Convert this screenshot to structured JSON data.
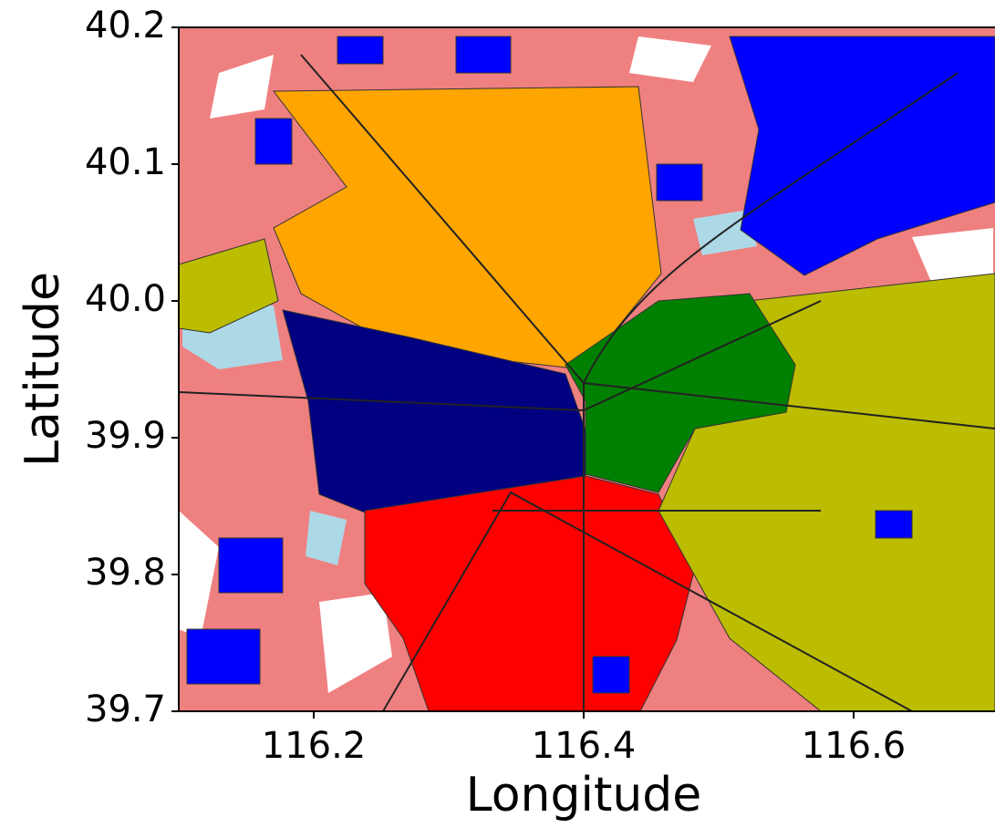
{
  "chart_data": {
    "type": "map",
    "xlabel": "Longitude",
    "ylabel": "Latitude",
    "xlim": [
      116.1,
      116.7
    ],
    "ylim": [
      39.7,
      40.2
    ],
    "xticks": [
      116.2,
      116.4,
      116.6
    ],
    "yticks": [
      39.7,
      39.8,
      39.9,
      {
        "value": 40,
        "label": "40.0"
      },
      40.1,
      40.2
    ]
  }
}
